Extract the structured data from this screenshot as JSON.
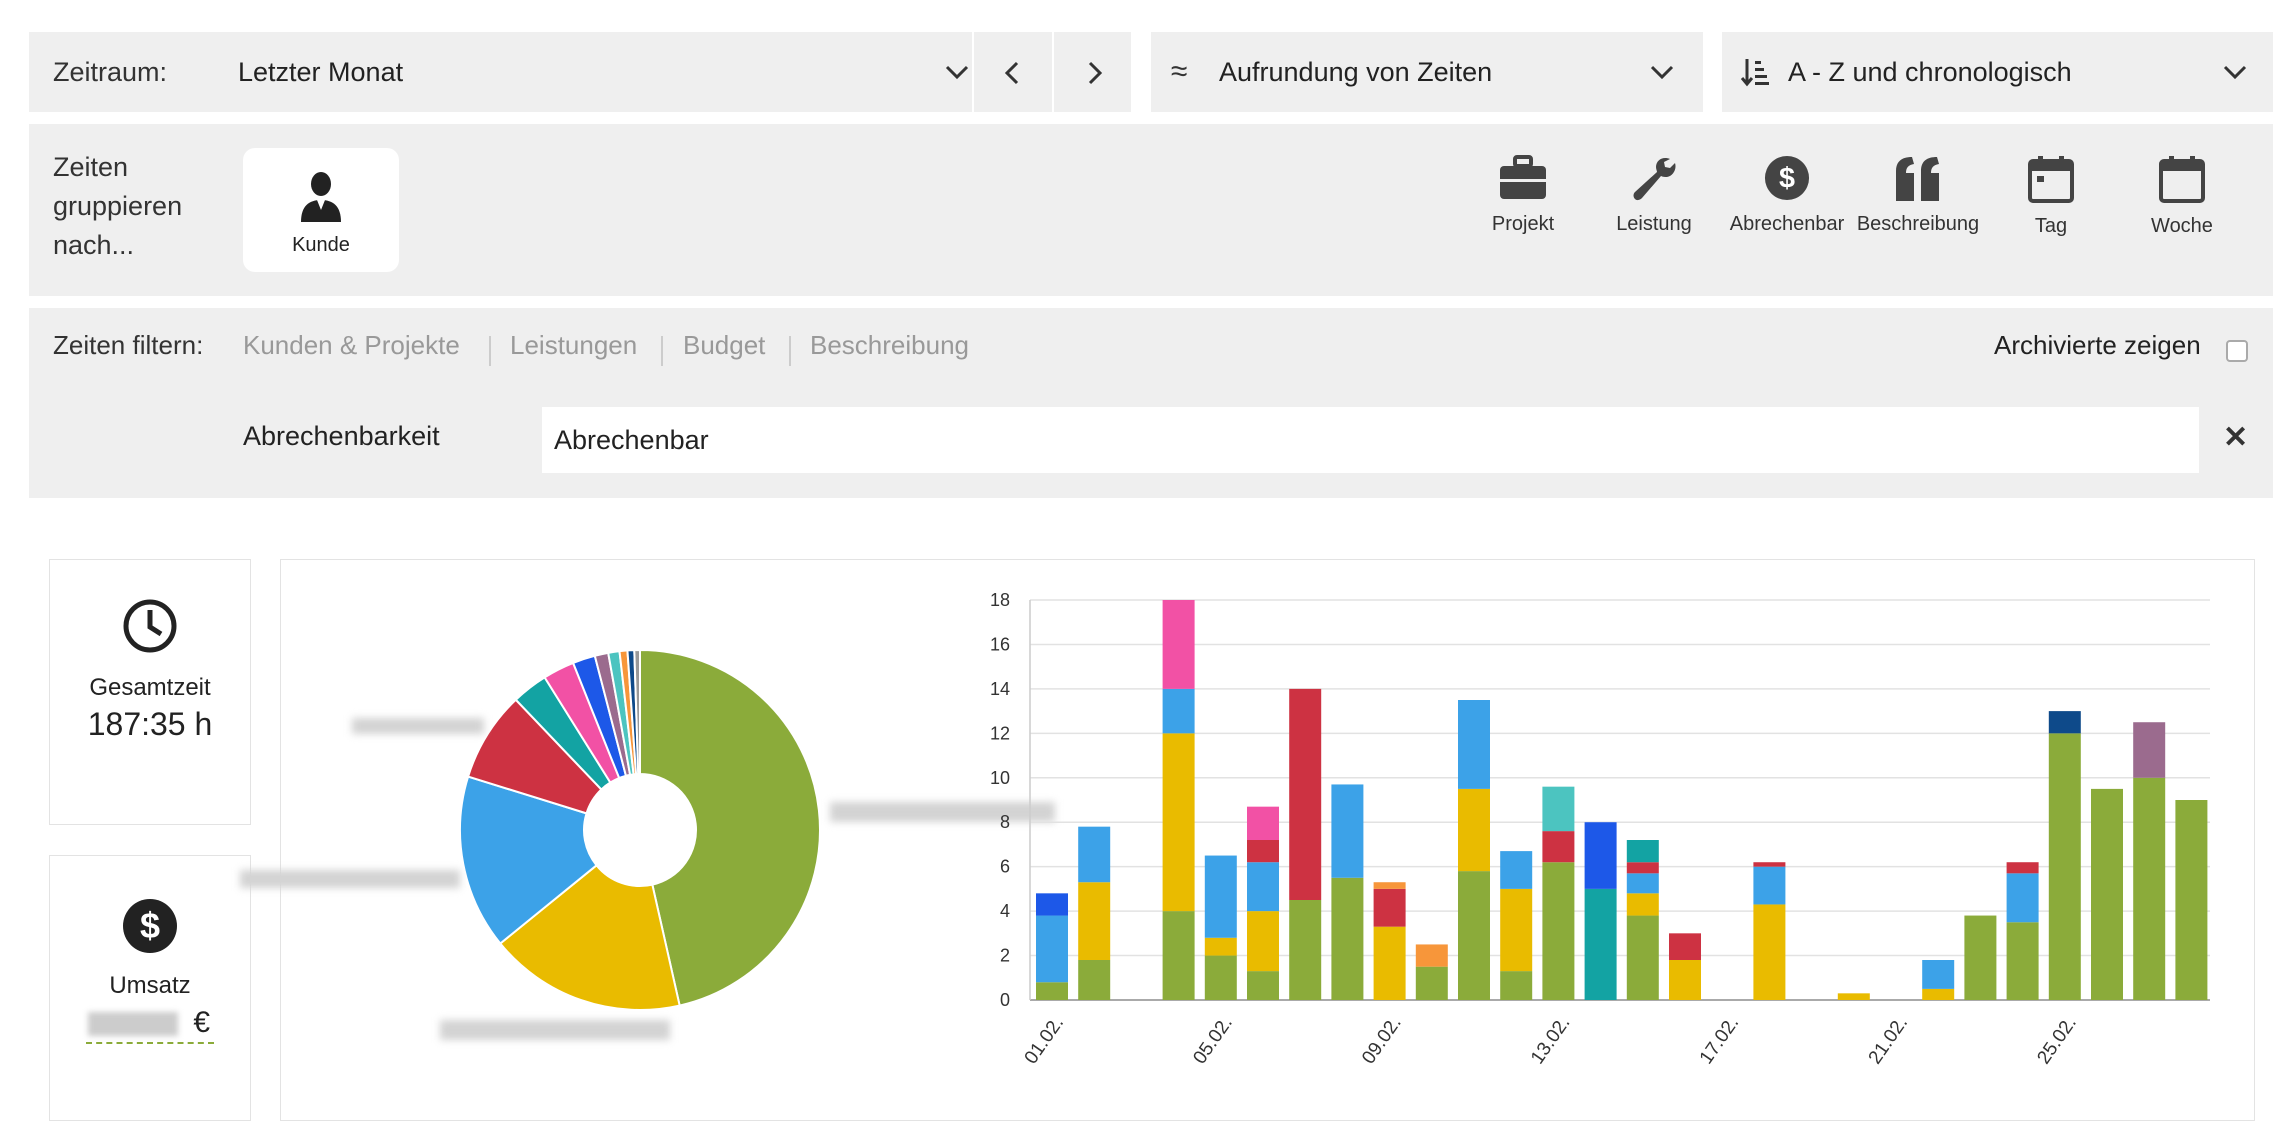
{
  "period": {
    "label": "Zeitraum:",
    "value": "Letzter Monat"
  },
  "rounding": {
    "icon_glyph": "≈",
    "value": "Aufrundung von Zeiten"
  },
  "sorting": {
    "value": "A - Z und chronologisch"
  },
  "grouping": {
    "label_line1": "Zeiten",
    "label_line2": "gruppieren",
    "label_line3": "nach...",
    "selected": "Kunde",
    "options": [
      "Projekt",
      "Leistung",
      "Abrechenbar",
      "Beschreibung",
      "Tag",
      "Woche"
    ]
  },
  "filter": {
    "label": "Zeiten filtern:",
    "links": [
      "Kunden & Projekte",
      "Leistungen",
      "Budget",
      "Beschreibung"
    ],
    "archived_label": "Archivierte zeigen",
    "billable_label": "Abrechenbarkeit",
    "billable_value": "Abrechenbar",
    "clear_glyph": "✕"
  },
  "stats": {
    "total_label": "Gesamtzeit",
    "total_value": "187:35 h",
    "revenue_label": "Umsatz",
    "revenue_currency": "€"
  },
  "colors": {
    "green": "#8bab3a",
    "yellow": "#e9bb00",
    "lightblue": "#3ca2e8",
    "red": "#cd3242",
    "teal": "#13a3a3",
    "pink": "#f251a5",
    "blue": "#1d58e8",
    "navy": "#0e4a8a",
    "mauve": "#9b6b8e",
    "orange": "#f7963a",
    "turquoise": "#4cc4c0",
    "gray": "#999999"
  },
  "chart_data": [
    {
      "type": "pie",
      "donut": true,
      "slices": [
        {
          "value": 46.0,
          "color": "green"
        },
        {
          "value": 17.5,
          "color": "yellow"
        },
        {
          "value": 15.5,
          "color": "lightblue"
        },
        {
          "value": 8.0,
          "color": "red"
        },
        {
          "value": 3.2,
          "color": "teal"
        },
        {
          "value": 2.8,
          "color": "pink"
        },
        {
          "value": 2.0,
          "color": "blue"
        },
        {
          "value": 1.2,
          "color": "mauve"
        },
        {
          "value": 1.0,
          "color": "turquoise"
        },
        {
          "value": 0.7,
          "color": "orange"
        },
        {
          "value": 0.6,
          "color": "navy"
        },
        {
          "value": 0.5,
          "color": "gray"
        }
      ]
    },
    {
      "type": "bar",
      "stacked": true,
      "ylim": [
        0,
        18
      ],
      "yticks": [
        0,
        2,
        4,
        6,
        8,
        10,
        12,
        14,
        16,
        18
      ],
      "grid": true,
      "x_tick_labels": [
        {
          "day": 1,
          "label": "01.02."
        },
        {
          "day": 5,
          "label": "05.02."
        },
        {
          "day": 9,
          "label": "09.02."
        },
        {
          "day": 13,
          "label": "13.02."
        },
        {
          "day": 17,
          "label": "17.02."
        },
        {
          "day": 21,
          "label": "21.02."
        },
        {
          "day": 25,
          "label": "25.02."
        }
      ],
      "bars": [
        {
          "day": 1,
          "segments": [
            [
              "green",
              0.8
            ],
            [
              "lightblue",
              3.0
            ],
            [
              "blue",
              1.0
            ]
          ]
        },
        {
          "day": 2,
          "segments": [
            [
              "green",
              1.8
            ],
            [
              "yellow",
              3.5
            ],
            [
              "lightblue",
              2.5
            ]
          ]
        },
        {
          "day": 4,
          "segments": [
            [
              "green",
              4.0
            ],
            [
              "yellow",
              8.0
            ],
            [
              "lightblue",
              2.0
            ],
            [
              "pink",
              4.0
            ]
          ]
        },
        {
          "day": 5,
          "segments": [
            [
              "green",
              2.0
            ],
            [
              "yellow",
              0.8
            ],
            [
              "lightblue",
              3.7
            ]
          ]
        },
        {
          "day": 6,
          "segments": [
            [
              "green",
              1.3
            ],
            [
              "yellow",
              2.7
            ],
            [
              "lightblue",
              2.2
            ],
            [
              "red",
              1.0
            ],
            [
              "pink",
              1.5
            ]
          ]
        },
        {
          "day": 7,
          "segments": [
            [
              "green",
              4.5
            ],
            [
              "red",
              9.5
            ]
          ]
        },
        {
          "day": 8,
          "segments": [
            [
              "green",
              5.5
            ],
            [
              "lightblue",
              4.2
            ]
          ]
        },
        {
          "day": 9,
          "segments": [
            [
              "yellow",
              3.3
            ],
            [
              "red",
              1.7
            ],
            [
              "orange",
              0.3
            ]
          ]
        },
        {
          "day": 10,
          "segments": [
            [
              "green",
              1.5
            ],
            [
              "orange",
              1.0
            ]
          ]
        },
        {
          "day": 11,
          "segments": [
            [
              "green",
              5.8
            ],
            [
              "yellow",
              3.7
            ],
            [
              "lightblue",
              4.0
            ]
          ]
        },
        {
          "day": 12,
          "segments": [
            [
              "green",
              1.3
            ],
            [
              "yellow",
              3.7
            ],
            [
              "lightblue",
              1.7
            ]
          ]
        },
        {
          "day": 13,
          "segments": [
            [
              "green",
              6.2
            ],
            [
              "red",
              1.4
            ],
            [
              "turquoise",
              2.0
            ]
          ]
        },
        {
          "day": 14,
          "segments": [
            [
              "teal",
              5.0
            ],
            [
              "blue",
              3.0
            ]
          ]
        },
        {
          "day": 15,
          "segments": [
            [
              "green",
              3.8
            ],
            [
              "yellow",
              1.0
            ],
            [
              "lightblue",
              0.9
            ],
            [
              "red",
              0.5
            ],
            [
              "teal",
              1.0
            ]
          ]
        },
        {
          "day": 16,
          "segments": [
            [
              "yellow",
              1.8
            ],
            [
              "red",
              1.2
            ]
          ]
        },
        {
          "day": 18,
          "segments": [
            [
              "yellow",
              4.3
            ],
            [
              "lightblue",
              1.7
            ],
            [
              "red",
              0.2
            ]
          ]
        },
        {
          "day": 20,
          "segments": [
            [
              "yellow",
              0.3
            ]
          ]
        },
        {
          "day": 22,
          "segments": [
            [
              "yellow",
              0.5
            ],
            [
              "lightblue",
              1.3
            ]
          ]
        },
        {
          "day": 23,
          "segments": [
            [
              "green",
              3.8
            ]
          ]
        },
        {
          "day": 24,
          "segments": [
            [
              "green",
              3.5
            ],
            [
              "lightblue",
              2.2
            ],
            [
              "red",
              0.5
            ]
          ]
        },
        {
          "day": 25,
          "segments": [
            [
              "green",
              12.0
            ],
            [
              "navy",
              1.0
            ]
          ]
        },
        {
          "day": 26,
          "segments": [
            [
              "green",
              9.5
            ]
          ]
        },
        {
          "day": 27,
          "segments": [
            [
              "green",
              10.0
            ],
            [
              "mauve",
              2.5
            ]
          ]
        },
        {
          "day": 28,
          "segments": [
            [
              "green",
              9.0
            ]
          ]
        }
      ]
    }
  ]
}
